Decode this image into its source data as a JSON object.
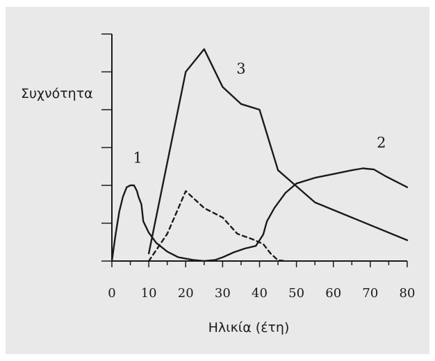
{
  "colors": {
    "background": "#e9e9e9",
    "line": "#1a1a1a"
  },
  "chart_data": {
    "type": "line",
    "title": "",
    "xlabel": "Ηλικία (έτη)",
    "ylabel": "Συχνότητα",
    "xlim": [
      0,
      80
    ],
    "ylim": [
      0,
      6
    ],
    "x_ticks": [
      0,
      10,
      20,
      30,
      40,
      50,
      60,
      70,
      80
    ],
    "x_tick_labels": [
      "0",
      "10",
      "20",
      "30",
      "40",
      "50",
      "60",
      "70",
      "80"
    ],
    "y_ticks": [
      0,
      1,
      2,
      3,
      4,
      5,
      6
    ],
    "y_tick_labels": [
      "",
      "",
      "",
      "",
      "",
      "",
      ""
    ],
    "grid": false,
    "legend": "none",
    "series": [
      {
        "name": "1",
        "style": "solid",
        "points": [
          [
            0,
            0
          ],
          [
            1,
            0.7
          ],
          [
            2,
            1.3
          ],
          [
            3,
            1.7
          ],
          [
            4,
            1.95
          ],
          [
            5,
            2.0
          ],
          [
            6,
            2.0
          ],
          [
            6.8,
            1.85
          ],
          [
            7.2,
            1.7
          ],
          [
            8,
            1.5
          ],
          [
            8.5,
            1.05
          ],
          [
            10,
            0.75
          ],
          [
            12,
            0.48
          ],
          [
            15,
            0.25
          ],
          [
            18,
            0.1
          ],
          [
            22,
            0.03
          ],
          [
            25,
            0
          ],
          [
            28,
            0.03
          ],
          [
            30,
            0.1
          ],
          [
            33,
            0.23
          ],
          [
            36,
            0.33
          ],
          [
            39,
            0.4
          ],
          [
            41,
            0.7
          ],
          [
            42,
            1.05
          ],
          [
            44,
            1.4
          ],
          [
            47,
            1.8
          ],
          [
            50,
            2.05
          ],
          [
            55,
            2.2
          ],
          [
            60,
            2.3
          ],
          [
            65,
            2.4
          ],
          [
            68,
            2.45
          ],
          [
            71,
            2.42
          ],
          [
            74,
            2.25
          ],
          [
            80,
            1.95
          ]
        ]
      },
      {
        "name": "2",
        "style": "solid",
        "points": [
          [
            10,
            0.2
          ],
          [
            20,
            5.0
          ],
          [
            25,
            5.6
          ],
          [
            30,
            4.6
          ],
          [
            35,
            4.15
          ],
          [
            40,
            4.0
          ],
          [
            45,
            2.4
          ],
          [
            55,
            1.55
          ],
          [
            80,
            0.55
          ]
        ]
      },
      {
        "name": "3",
        "style": "dashed",
        "points": [
          [
            10,
            0
          ],
          [
            15,
            0.72
          ],
          [
            20,
            1.85
          ],
          [
            25,
            1.4
          ],
          [
            30,
            1.15
          ],
          [
            34,
            0.72
          ],
          [
            38,
            0.58
          ],
          [
            41,
            0.45
          ],
          [
            43,
            0.2
          ],
          [
            45,
            0.02
          ],
          [
            47,
            0
          ]
        ]
      }
    ],
    "annotations": [
      {
        "text": "1",
        "x": 7,
        "y": 2.6
      },
      {
        "text": "3",
        "x": 35,
        "y": 4.95
      },
      {
        "text": "2",
        "x": 73,
        "y": 3.0
      }
    ]
  }
}
